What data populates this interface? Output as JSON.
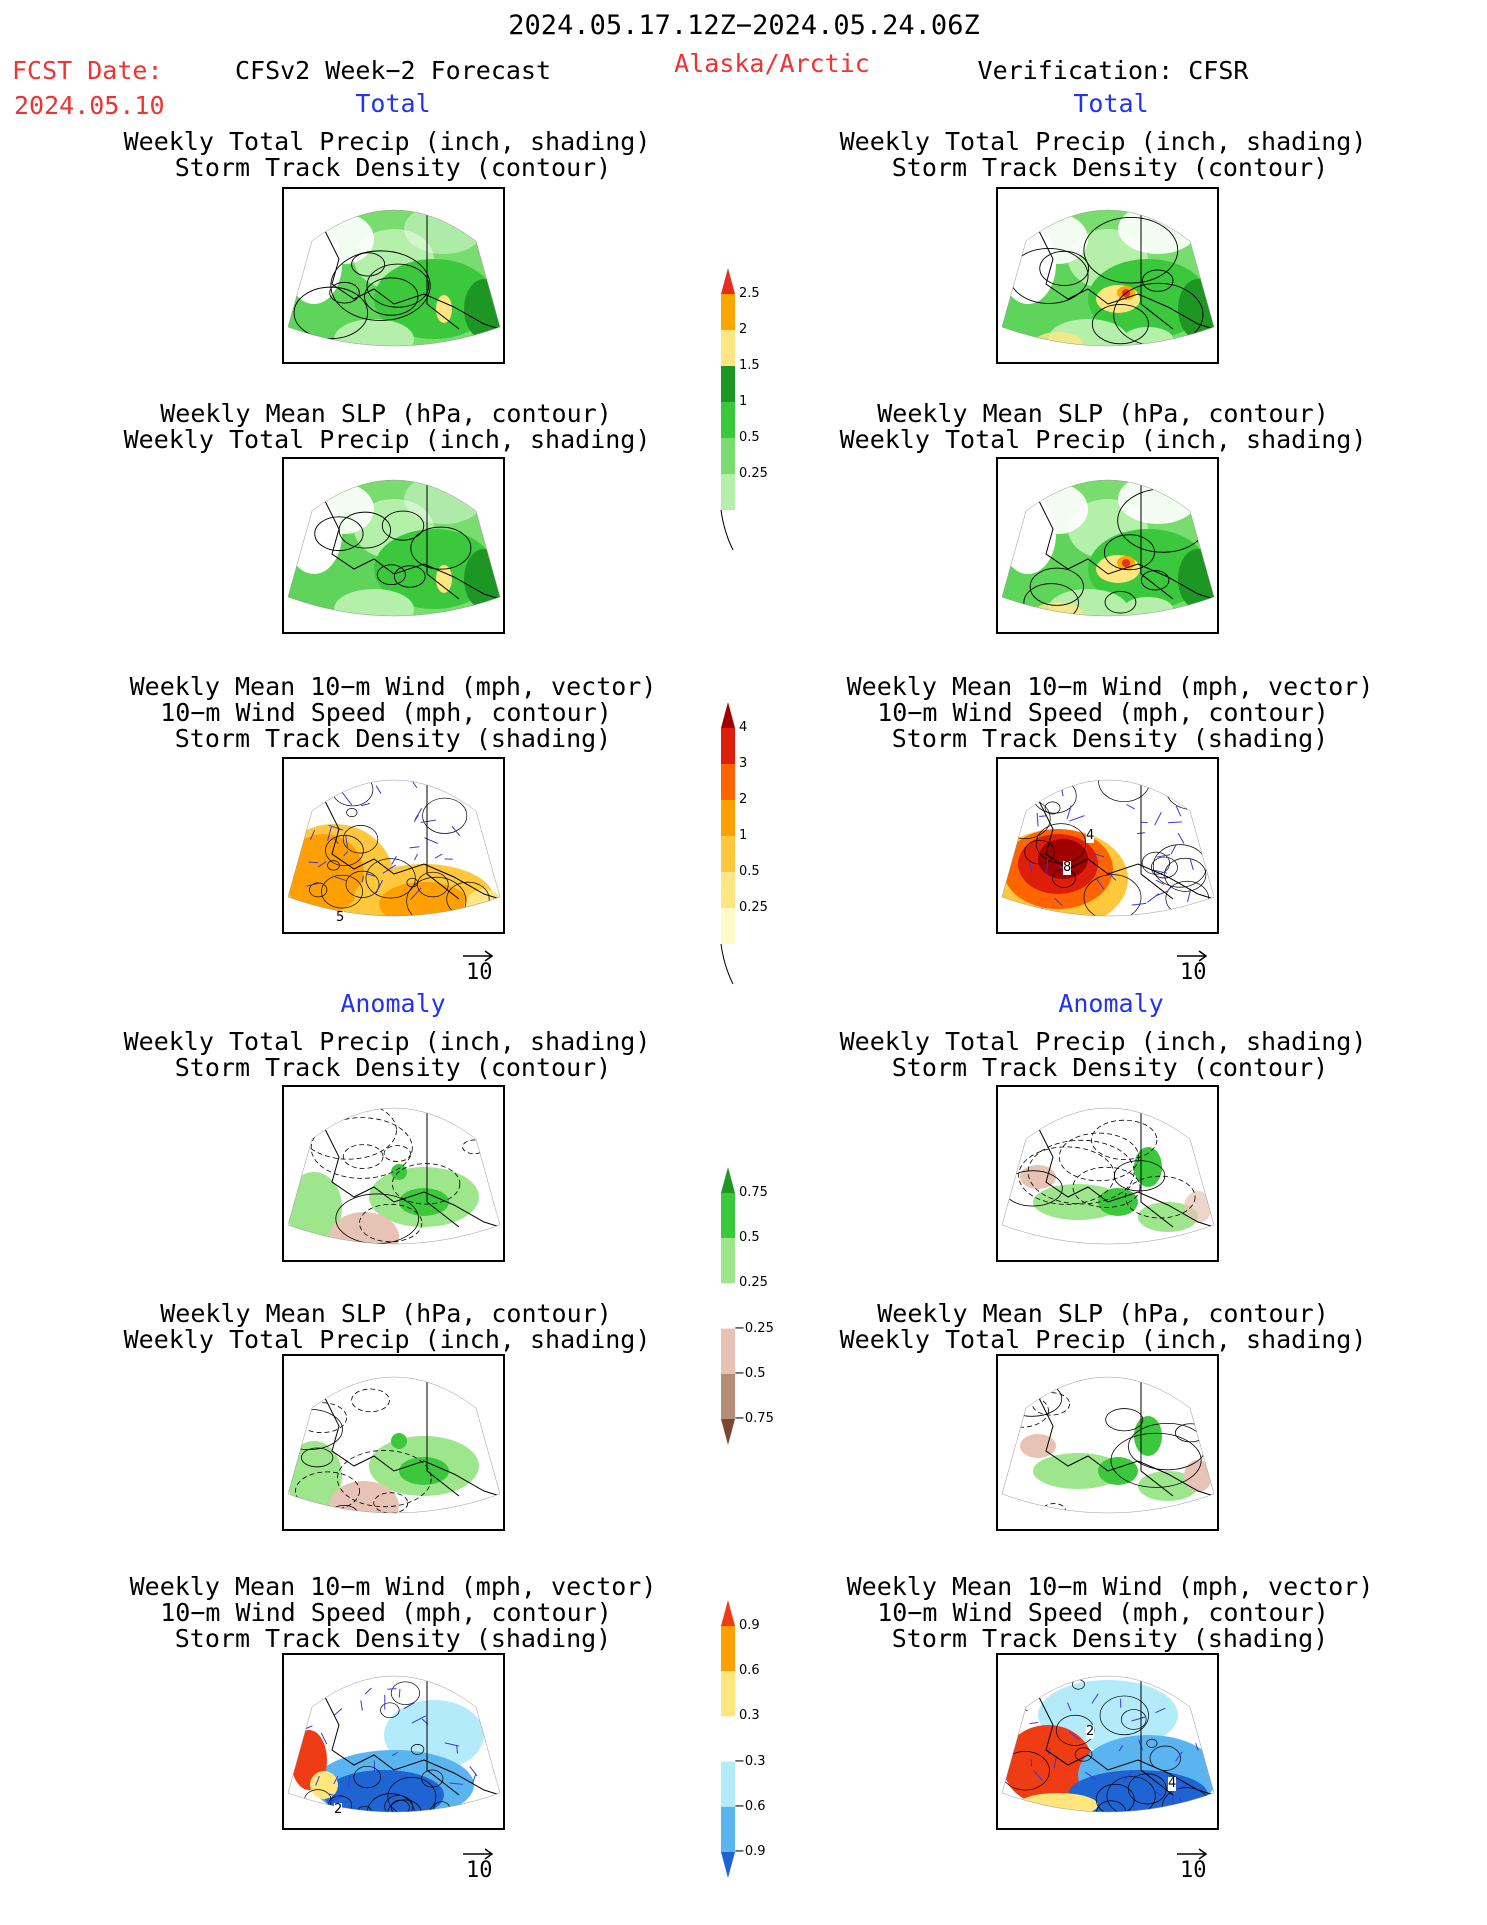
{
  "header": {
    "date_range": "2024.05.17.12Z−2024.05.24.06Z",
    "fcst_label": "FCST Date:",
    "fcst_date": "2024.05.10",
    "forecast_title": "CFSv2 Week−2 Forecast",
    "region": "Alaska/Arctic",
    "verification": "Verification: CFSR"
  },
  "sections": {
    "total": "Total",
    "anomaly": "Anomaly"
  },
  "titles": {
    "precip_track": [
      "Weekly Total Precip (inch, shading)",
      "Storm Track Density (contour)"
    ],
    "slp_precip": [
      "Weekly Mean SLP (hPa, contour)",
      "Weekly Total Precip (inch, shading)"
    ],
    "wind_track": [
      "Weekly Mean 10−m Wind (mph, vector)",
      "10−m Wind Speed (mph, contour)",
      "Storm Track Density (shading)"
    ]
  },
  "vector_reference": "10",
  "colorbars": {
    "precip_total": {
      "labels": [
        "0.25",
        "0.5",
        "1",
        "1.5",
        "2",
        "2.5"
      ],
      "colors": [
        "#b4f0aa",
        "#78dc6e",
        "#3cc83c",
        "#1e9623",
        "#ffe682",
        "#ffa500",
        "#e62d1e"
      ]
    },
    "track_total": {
      "labels": [
        "0.25",
        "0.5",
        "1",
        "2",
        "3",
        "4"
      ],
      "colors": [
        "#fffac8",
        "#ffe682",
        "#ffc83c",
        "#ffa000",
        "#ff6400",
        "#dc1e0a",
        "#a00000"
      ]
    },
    "precip_anom": {
      "labels": [
        "0.75",
        "0.5",
        "0.25",
        "−0.25",
        "−0.5",
        "−0.75"
      ],
      "colors": [
        "#1e9623",
        "#3cc83c",
        "#9ee68c",
        "#ffffff",
        "#e6c3b4",
        "#b48c78",
        "#7d4632"
      ]
    },
    "track_anom": {
      "labels": [
        "0.9",
        "0.6",
        "0.3",
        "−0.3",
        "−0.6",
        "−0.9"
      ],
      "colors": [
        "#f03c14",
        "#ffa000",
        "#ffe67d",
        "#ffffff",
        "#b4ebfa",
        "#5ab4f0",
        "#1e64d2"
      ]
    }
  },
  "panel_labels": {
    "fcst_track_total_value": "5",
    "obs_track_total_value": "8",
    "obs_track_total_value2": "4",
    "fcst_track_anom_value": "2",
    "obs_track_anom_value": "4",
    "obs_track_anom_value2": "2"
  }
}
